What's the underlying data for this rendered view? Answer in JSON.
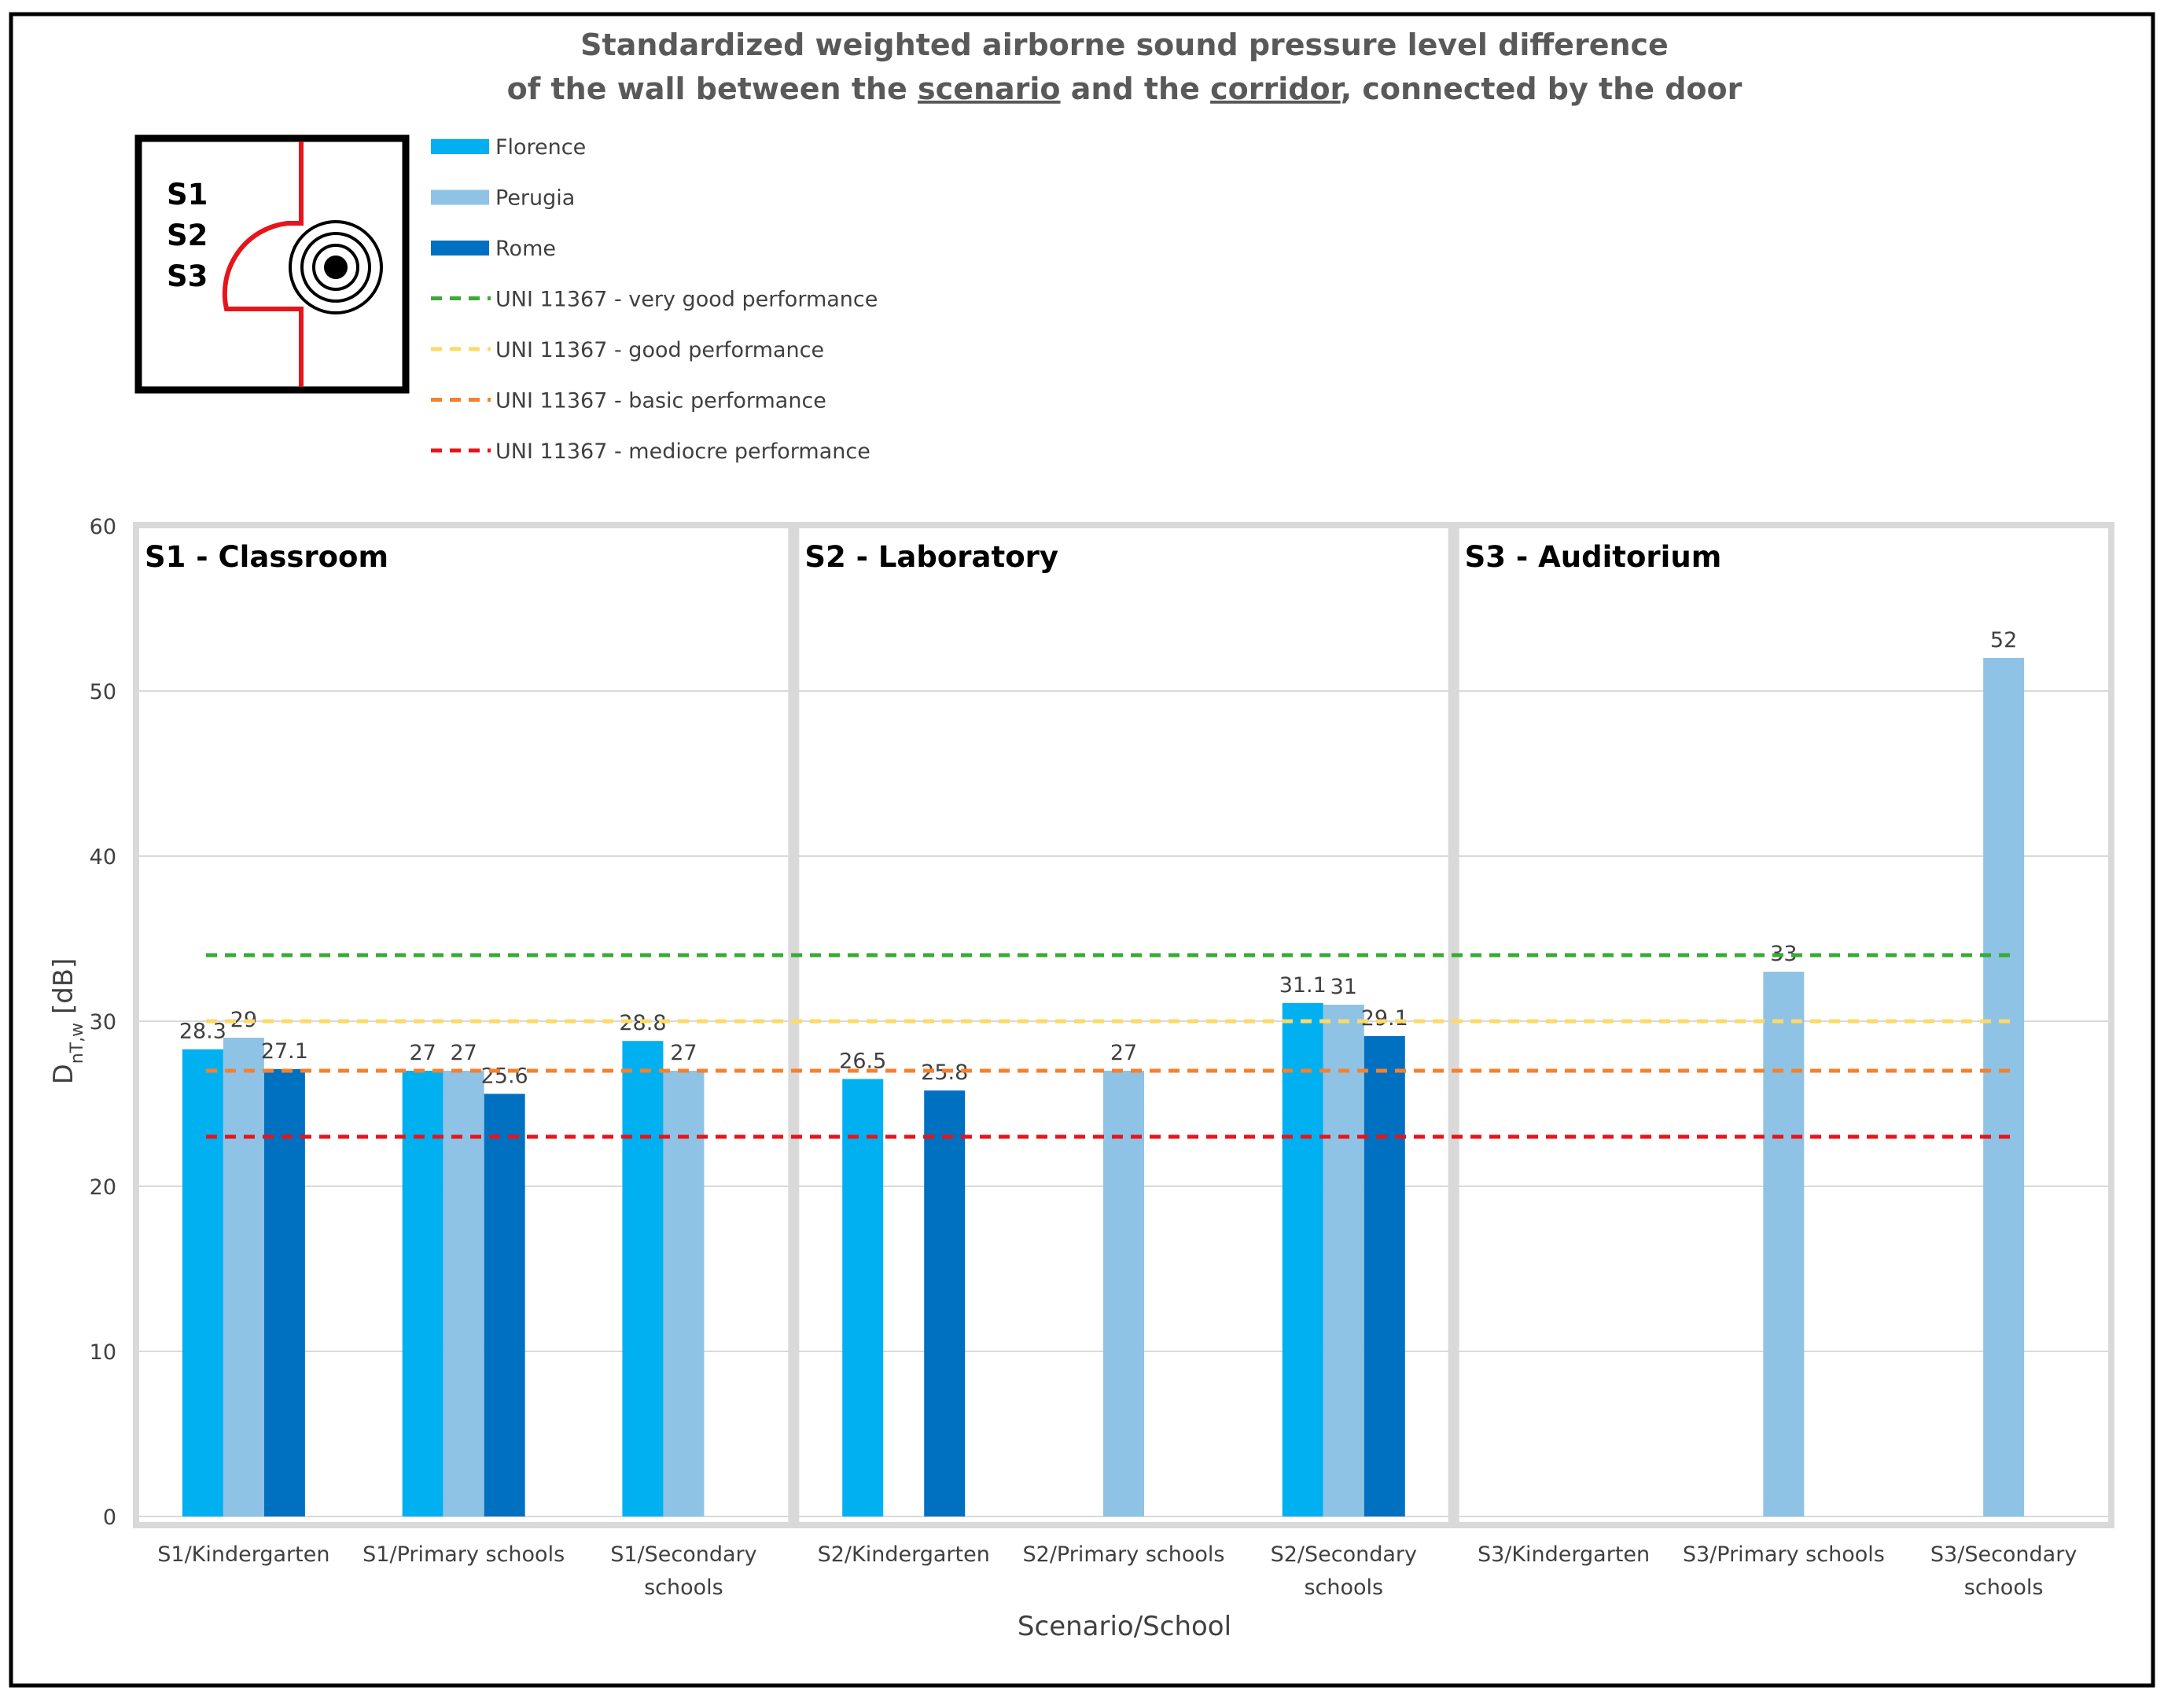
{
  "chart_data": {
    "type": "bar",
    "title_line1": "Standardized weighted airborne sound pressure level difference",
    "title_line2_parts": [
      "of the wall between the ",
      "scenario",
      " and the ",
      "corridor",
      ", connected by the door"
    ],
    "ylabel_main": "D",
    "ylabel_sub": "nT,w",
    "ylabel_unit": " [dB]",
    "xlabel": "Scenario/School",
    "ylim": [
      0,
      60
    ],
    "yticks": [
      0,
      10,
      20,
      30,
      40,
      50,
      60
    ],
    "grid": true,
    "icon_labels": [
      "S1",
      "S2",
      "S3"
    ],
    "colors": {
      "Florence": "#00b0f0",
      "Perugia": "#8fc3e6",
      "Rome": "#0070c0"
    },
    "panels": [
      {
        "title": "S1 - Classroom",
        "categories": [
          {
            "label": [
              "S1/Kindergarten"
            ],
            "values": {
              "Florence": 28.3,
              "Perugia": 29,
              "Rome": 27.1
            },
            "labels": {
              "Florence": "28.3",
              "Perugia": "29",
              "Rome": "27.1"
            }
          },
          {
            "label": [
              "S1/Primary schools"
            ],
            "values": {
              "Florence": 27,
              "Perugia": 27,
              "Rome": 25.6
            },
            "labels": {
              "Florence": "27",
              "Perugia": "27",
              "Rome": "25.6"
            }
          },
          {
            "label": [
              "S1/Secondary",
              "schools"
            ],
            "values": {
              "Florence": 28.8,
              "Perugia": 27,
              "Rome": null
            },
            "labels": {
              "Florence": "28.8",
              "Perugia": "27",
              "Rome": null
            }
          }
        ]
      },
      {
        "title": "S2 - Laboratory",
        "categories": [
          {
            "label": [
              "S2/Kindergarten"
            ],
            "values": {
              "Florence": 26.5,
              "Perugia": null,
              "Rome": 25.8
            },
            "labels": {
              "Florence": "26.5",
              "Perugia": null,
              "Rome": "25.8"
            }
          },
          {
            "label": [
              "S2/Primary schools"
            ],
            "values": {
              "Florence": null,
              "Perugia": 27,
              "Rome": null
            },
            "labels": {
              "Florence": null,
              "Perugia": "27",
              "Rome": null
            }
          },
          {
            "label": [
              "S2/Secondary",
              "schools"
            ],
            "values": {
              "Florence": 31.1,
              "Perugia": 31,
              "Rome": 29.1
            },
            "labels": {
              "Florence": "31.1",
              "Perugia": "31",
              "Rome": "29.1"
            }
          }
        ]
      },
      {
        "title": "S3 - Auditorium",
        "categories": [
          {
            "label": [
              "S3/Kindergarten"
            ],
            "values": {
              "Florence": null,
              "Perugia": null,
              "Rome": null
            },
            "labels": {
              "Florence": null,
              "Perugia": null,
              "Rome": null
            }
          },
          {
            "label": [
              "S3/Primary schools"
            ],
            "values": {
              "Florence": null,
              "Perugia": 33,
              "Rome": null
            },
            "labels": {
              "Florence": null,
              "Perugia": "33",
              "Rome": null
            }
          },
          {
            "label": [
              "S3/Secondary",
              "schools"
            ],
            "values": {
              "Florence": null,
              "Perugia": 52,
              "Rome": null
            },
            "labels": {
              "Florence": null,
              "Perugia": "52",
              "Rome": null
            }
          }
        ]
      }
    ],
    "series": [
      {
        "name": "Florence",
        "type": "bar",
        "color": "#00b0f0"
      },
      {
        "name": "Perugia",
        "type": "bar",
        "color": "#8fc3e6"
      },
      {
        "name": "Rome",
        "type": "bar",
        "color": "#0070c0"
      }
    ],
    "thresholds": [
      {
        "name": "UNI 11367 - very good performance",
        "value": 34,
        "color": "#3aaa35"
      },
      {
        "name": "UNI 11367 - good performance",
        "value": 30,
        "color": "#ffd966"
      },
      {
        "name": "UNI 11367 - basic performance",
        "value": 27,
        "color": "#f4812f"
      },
      {
        "name": "UNI 11367 - mediocre performance",
        "value": 23,
        "color": "#e8141b"
      }
    ]
  }
}
